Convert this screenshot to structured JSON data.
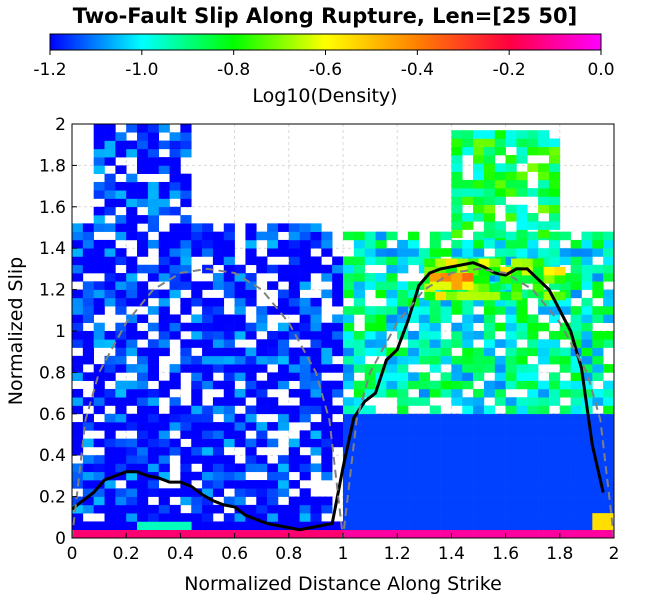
{
  "chart_data": {
    "type": "heatmap",
    "title": "Two-Fault Slip Along Rupture, Len=[25 50]",
    "xlabel": "Normalized Distance Along Strike",
    "ylabel": "Normalized Slip",
    "xlim": [
      0,
      2
    ],
    "ylim": [
      0,
      2
    ],
    "xticks": [
      "0",
      "0.2",
      "0.4",
      "0.6",
      "0.8",
      "1",
      "1.2",
      "1.4",
      "1.6",
      "1.8",
      "2"
    ],
    "yticks": [
      "0",
      "0.2",
      "0.4",
      "0.6",
      "0.8",
      "1",
      "1.2",
      "1.4",
      "1.6",
      "1.8",
      "2"
    ],
    "grid": true,
    "colorbar": {
      "label": "Log10(Density)",
      "range": [
        -1.2,
        0.0
      ],
      "ticks": [
        "-1.2",
        "-1.0",
        "-0.8",
        "-0.6",
        "-0.4",
        "-0.2",
        "0.0"
      ],
      "colormap": [
        "#0000ff",
        "#00ffff",
        "#00ff00",
        "#ffff00",
        "#ff8000",
        "#ff0040",
        "#ff00ff"
      ]
    },
    "grid_cell_size": [
      0.04,
      0.04
    ],
    "heatmap_regions": [
      {
        "x": [
          0.0,
          1.0
        ],
        "y": [
          0.0,
          0.04
        ],
        "value": -0.15
      },
      {
        "x": [
          0.0,
          1.0
        ],
        "y": [
          0.04,
          0.08
        ],
        "value": -1.2
      },
      {
        "x": [
          0.24,
          0.44
        ],
        "y": [
          0.04,
          0.08
        ],
        "value": -0.95
      },
      {
        "x": [
          0.0,
          0.96
        ],
        "y": [
          0.08,
          0.44
        ],
        "value": -1.2
      },
      {
        "x": [
          0.0,
          1.0
        ],
        "y": [
          0.44,
          1.52
        ],
        "value": -1.2
      },
      {
        "x": [
          0.08,
          0.44
        ],
        "y": [
          1.52,
          2.0
        ],
        "value": -1.2
      },
      {
        "x": [
          1.0,
          2.0
        ],
        "y": [
          0.0,
          0.04
        ],
        "value": -0.1
      },
      {
        "x": [
          1.0,
          2.0
        ],
        "y": [
          0.04,
          0.6
        ],
        "value": -1.15
      },
      {
        "x": [
          1.0,
          2.0
        ],
        "y": [
          0.6,
          1.45
        ],
        "value": -0.95
      },
      {
        "x": [
          1.3,
          1.8
        ],
        "y": [
          1.15,
          1.35
        ],
        "value": -0.7
      },
      {
        "x": [
          1.32,
          1.48
        ],
        "y": [
          1.2,
          1.28
        ],
        "value": -0.5
      },
      {
        "x": [
          1.4,
          1.8
        ],
        "y": [
          1.45,
          1.95
        ],
        "value": -0.85
      },
      {
        "x": [
          1.92,
          2.0
        ],
        "y": [
          0.04,
          0.12
        ],
        "value": -0.55
      }
    ],
    "series": [
      {
        "style": "solid",
        "x": [
          0.0,
          0.04,
          0.08,
          0.12,
          0.16,
          0.2,
          0.24,
          0.28,
          0.32,
          0.36,
          0.4,
          0.44,
          0.48,
          0.52,
          0.56,
          0.6,
          0.64,
          0.68,
          0.72,
          0.76,
          0.8,
          0.84,
          0.88,
          0.92,
          0.96,
          1.0,
          1.04,
          1.08,
          1.12,
          1.16,
          1.2,
          1.24,
          1.28,
          1.32,
          1.36,
          1.4,
          1.44,
          1.48,
          1.52,
          1.56,
          1.6,
          1.64,
          1.68,
          1.72,
          1.76,
          1.8,
          1.84,
          1.88,
          1.92,
          1.96
        ],
        "y": [
          0.14,
          0.18,
          0.22,
          0.28,
          0.3,
          0.32,
          0.32,
          0.3,
          0.29,
          0.27,
          0.27,
          0.25,
          0.21,
          0.18,
          0.16,
          0.15,
          0.11,
          0.09,
          0.07,
          0.06,
          0.05,
          0.04,
          0.05,
          0.06,
          0.07,
          0.34,
          0.58,
          0.66,
          0.7,
          0.86,
          0.91,
          1.05,
          1.22,
          1.28,
          1.3,
          1.31,
          1.32,
          1.33,
          1.31,
          1.28,
          1.27,
          1.3,
          1.3,
          1.25,
          1.2,
          1.1,
          1.0,
          0.82,
          0.45,
          0.22
        ]
      },
      {
        "style": "dashed",
        "x": [
          0.0,
          0.05,
          0.1,
          0.2,
          0.3,
          0.4,
          0.5,
          0.6,
          0.7,
          0.8,
          0.9,
          0.95,
          1.0,
          1.05,
          1.1,
          1.2,
          1.3,
          1.4,
          1.5,
          1.6,
          1.7,
          1.8,
          1.9,
          1.95,
          2.0
        ],
        "y": [
          0.0,
          0.57,
          0.8,
          1.04,
          1.2,
          1.28,
          1.3,
          1.28,
          1.2,
          1.04,
          0.8,
          0.57,
          0.0,
          0.57,
          0.8,
          1.04,
          1.2,
          1.28,
          1.3,
          1.28,
          1.2,
          1.04,
          0.8,
          0.57,
          0.0
        ]
      }
    ]
  }
}
